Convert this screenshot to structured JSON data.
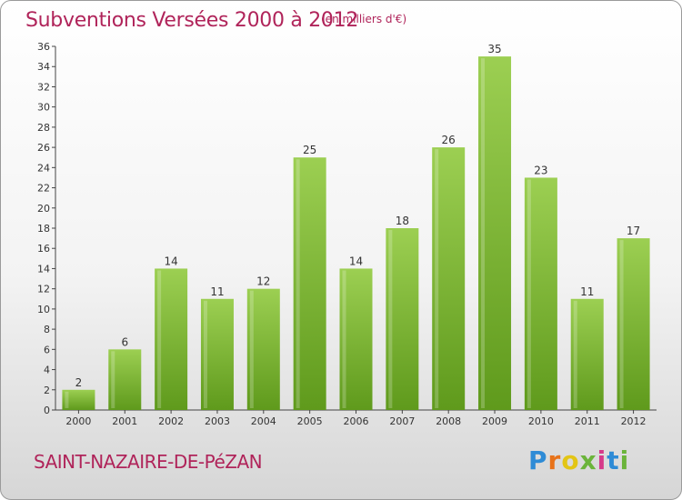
{
  "header": {
    "title": "Subventions Versées 2000 à 2012",
    "unit": "(en milliers d'€)"
  },
  "footer": {
    "city": "SAINT-NAZAIRE-DE-PéZAN",
    "logo": "Proxiti"
  },
  "colors": {
    "accent": "#b0245a",
    "bar_light": "#9ccf52",
    "bar_dark": "#5f9a1c",
    "background_top": "#ffffff",
    "background_bottom": "#d6d6d6"
  },
  "chart_data": {
    "type": "bar",
    "title": "Subventions Versées 2000 à 2012",
    "subtitle": "(en milliers d'€)",
    "xlabel": "",
    "ylabel": "",
    "categories": [
      "2000",
      "2001",
      "2002",
      "2003",
      "2004",
      "2005",
      "2006",
      "2007",
      "2008",
      "2009",
      "2010",
      "2011",
      "2012"
    ],
    "values": [
      2,
      6,
      14,
      11,
      12,
      25,
      14,
      18,
      26,
      35,
      23,
      11,
      17
    ],
    "ylim": [
      0,
      36
    ],
    "yticks": [
      0,
      2,
      4,
      6,
      8,
      10,
      12,
      14,
      16,
      18,
      20,
      22,
      24,
      26,
      28,
      30,
      32,
      34,
      36
    ],
    "grid": false,
    "data_labels": true
  }
}
